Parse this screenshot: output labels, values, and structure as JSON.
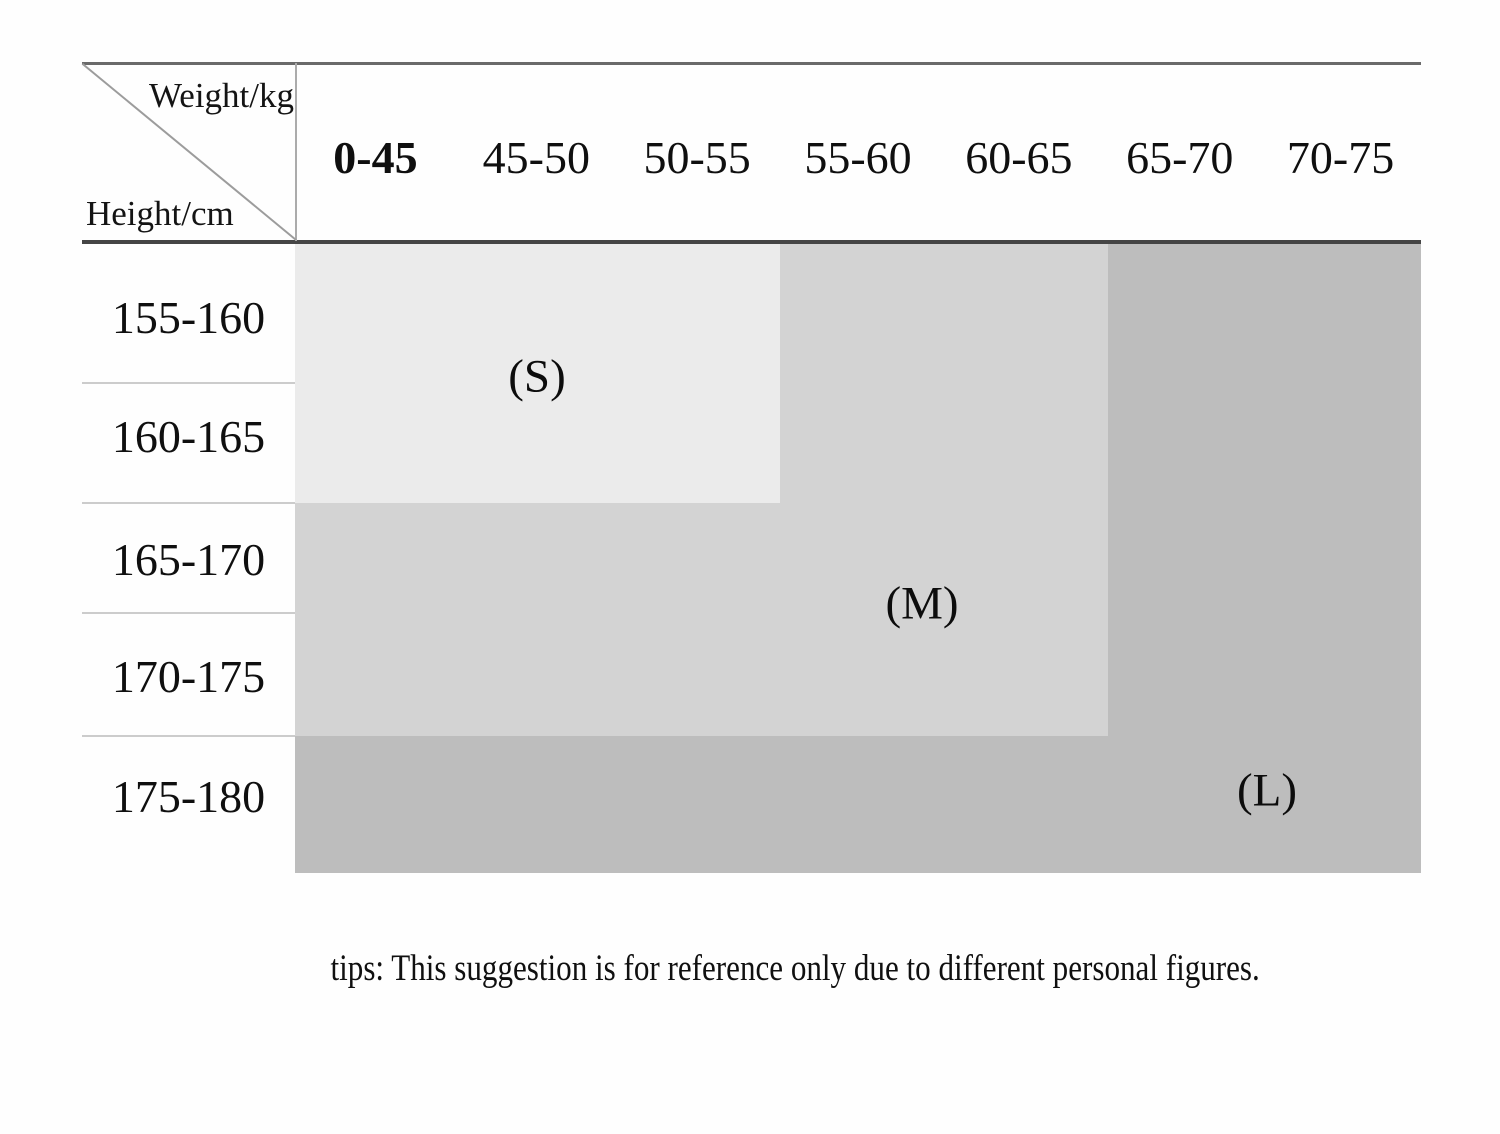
{
  "page": {
    "background": "#fefefe",
    "tips": "tips: This suggestion is for reference only due to different personal figures."
  },
  "size_chart": {
    "axis": {
      "column_unit": "Weight/kg",
      "row_unit": "Height/cm"
    },
    "columns": [
      "0-45",
      "45-50",
      "50-55",
      "55-60",
      "60-65",
      "65-70",
      "70-75"
    ],
    "rows": [
      "155-160",
      "160-165",
      "165-170",
      "170-175",
      "175-180"
    ],
    "regions": [
      {
        "size": "S",
        "label": "(S)",
        "color": "#ebebeb"
      },
      {
        "size": "M",
        "label": "(M)",
        "color": "#d3d3d3"
      },
      {
        "size": "L",
        "label": "(L)",
        "color": "#bdbdbd"
      }
    ],
    "line_colors": {
      "top_border": "#6a6a6a",
      "header_underline": "#454545",
      "row_divider": "#cccccc"
    }
  },
  "chart_data": {
    "type": "table",
    "title": "",
    "x_axis_label": "Weight/kg",
    "y_axis_label": "Height/cm",
    "columns": [
      "0-45",
      "45-50",
      "50-55",
      "55-60",
      "60-65",
      "65-70",
      "70-75"
    ],
    "rows": [
      "155-160",
      "160-165",
      "165-170",
      "170-175",
      "175-180"
    ],
    "cells": [
      [
        "S",
        "S",
        "S",
        "M",
        "M",
        "L",
        "L"
      ],
      [
        "S",
        "S",
        "S",
        "M",
        "M",
        "L",
        "L"
      ],
      [
        "M",
        "M",
        "M",
        "M",
        "M",
        "L",
        "L"
      ],
      [
        "M",
        "M",
        "M",
        "M",
        "M",
        "L",
        "L"
      ],
      [
        "L",
        "L",
        "L",
        "L",
        "L",
        "L",
        "L"
      ]
    ],
    "region_labels": [
      "(S)",
      "(M)",
      "(L)"
    ],
    "region_colors": {
      "S": "#ebebeb",
      "M": "#d3d3d3",
      "L": "#bdbdbd"
    },
    "legend_position": "labels-inside-regions",
    "grid": "row dividers on header column only; no body gridlines",
    "note": "tips: This suggestion is for reference only due to different personal figures."
  }
}
